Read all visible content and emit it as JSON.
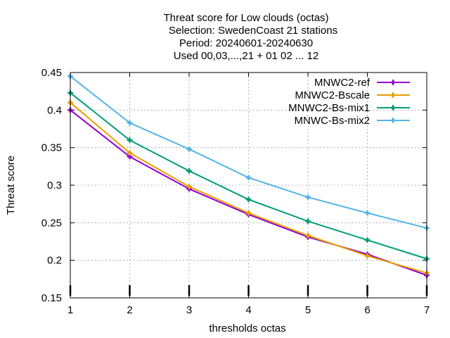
{
  "chart_data": {
    "type": "line",
    "title": [
      "Threat score  for Low clouds (octas)",
      "Selection: SwedenCoast     21 stations",
      "Period: 20240601-20240630",
      "Used 00,03,...,21 + 01 02 ... 12"
    ],
    "xlabel": "thresholds octas",
    "ylabel": "Threat score",
    "x": [
      1,
      2,
      3,
      4,
      5,
      6,
      7
    ],
    "xlim": [
      1,
      7
    ],
    "ylim": [
      0.15,
      0.45
    ],
    "xticks": [
      "1",
      "2",
      "3",
      "4",
      "5",
      "6",
      "7"
    ],
    "yticks": [
      "0.15",
      "0.2",
      "0.25",
      "0.3",
      "0.35",
      "0.4",
      "0.45"
    ],
    "grid": true,
    "legend_position": "top-right",
    "series": [
      {
        "name": "MNWC2-ref",
        "color": "#9400d3",
        "values": [
          0.4,
          0.338,
          0.295,
          0.261,
          0.231,
          0.208,
          0.18
        ]
      },
      {
        "name": "MNWC2-Bscale",
        "color": "#e69f00",
        "values": [
          0.41,
          0.343,
          0.298,
          0.263,
          0.233,
          0.206,
          0.183
        ]
      },
      {
        "name": "MNWC2-Bs-mix1",
        "color": "#009e73",
        "values": [
          0.423,
          0.36,
          0.319,
          0.281,
          0.252,
          0.227,
          0.202
        ]
      },
      {
        "name": "MNWC-Bs-mix2",
        "color": "#56b4e9",
        "values": [
          0.445,
          0.383,
          0.348,
          0.31,
          0.284,
          0.263,
          0.243
        ]
      }
    ]
  }
}
